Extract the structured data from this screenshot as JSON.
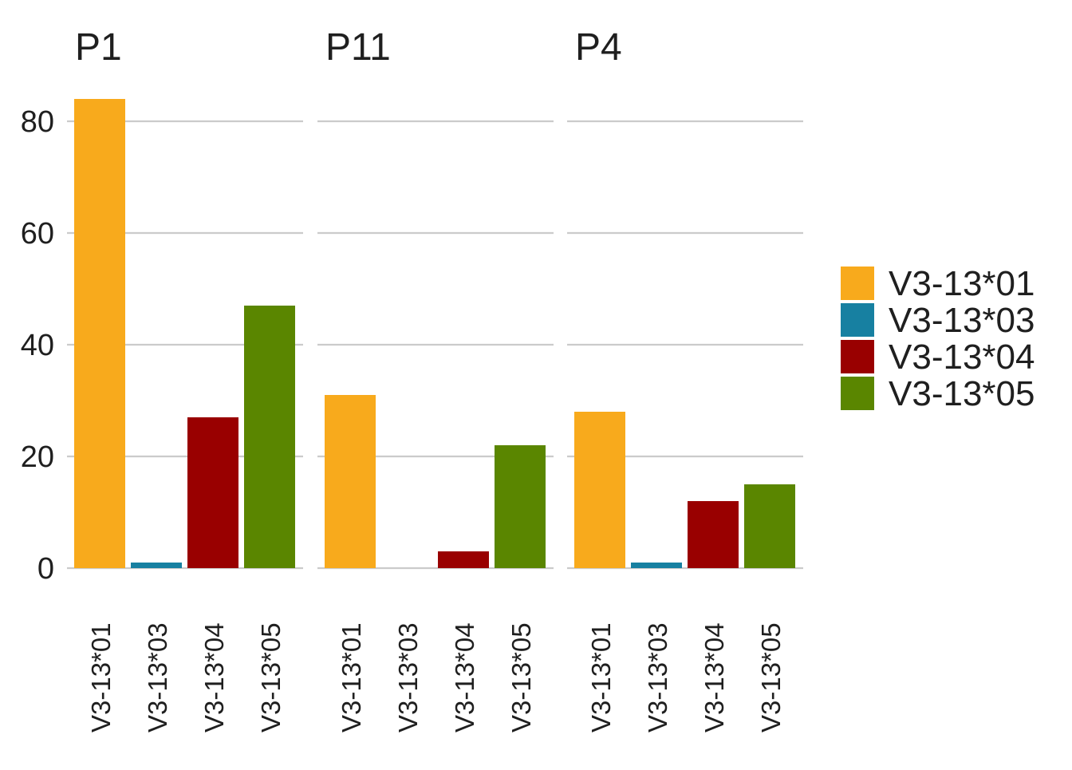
{
  "chart_data": {
    "type": "bar",
    "facets": [
      "P1",
      "P11",
      "P4"
    ],
    "categories": [
      "V3-13*01",
      "V3-13*03",
      "V3-13*04",
      "V3-13*05"
    ],
    "panels": [
      {
        "name": "P1",
        "values": [
          84,
          1,
          27,
          47
        ]
      },
      {
        "name": "P11",
        "values": [
          31,
          0,
          3,
          22
        ]
      },
      {
        "name": "P4",
        "values": [
          28,
          1,
          12,
          15
        ]
      }
    ],
    "colors": {
      "V3-13*01": "#F8AA1C",
      "V3-13*03": "#1780A1",
      "V3-13*04": "#990000",
      "V3-13*05": "#5A8600"
    },
    "y_ticks": [
      0,
      20,
      40,
      60,
      80
    ],
    "ylim": [
      0,
      86
    ],
    "grid": true,
    "legend": {
      "position": "right",
      "items": [
        "V3-13*01",
        "V3-13*03",
        "V3-13*04",
        "V3-13*05"
      ]
    },
    "xlabel": "",
    "ylabel": ""
  }
}
